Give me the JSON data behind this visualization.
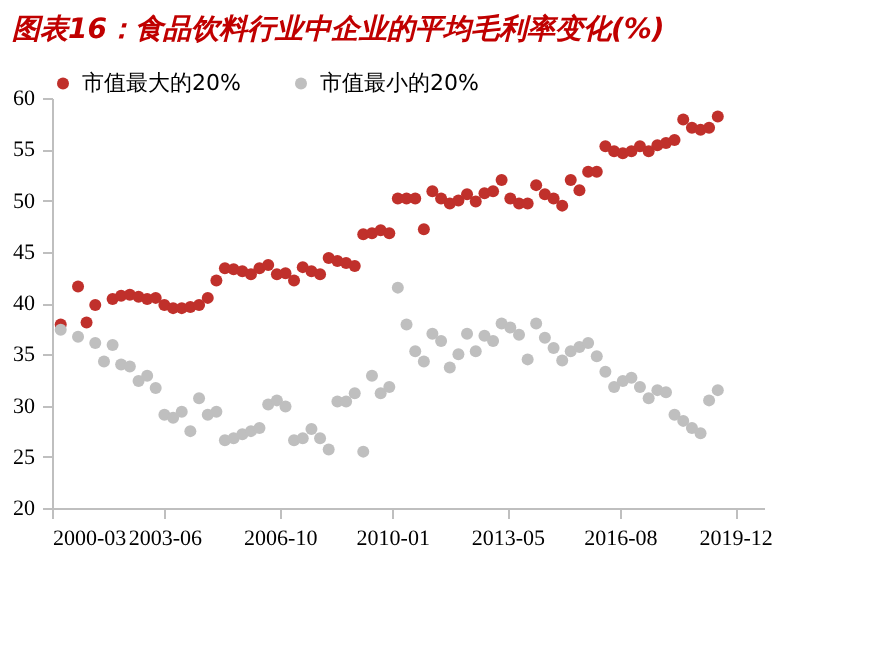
{
  "chart_data": {
    "type": "scatter",
    "title": "图表16：食品饮料行业中企业的平均毛利率变化(%)",
    "xlim": [
      "2000-03",
      "2020-10"
    ],
    "xticks": [
      "2000-03",
      "2003-06",
      "2006-10",
      "2010-01",
      "2013-05",
      "2016-08",
      "2019-12"
    ],
    "ylim": [
      20,
      60
    ],
    "yticks": [
      20,
      25,
      30,
      35,
      40,
      45,
      50,
      55,
      60
    ],
    "grid": false,
    "legend": "top",
    "marker": "circle",
    "series": [
      {
        "name": "市值最大的20%",
        "color": "#c0302b",
        "x": [
          "2000-06",
          "2000-12",
          "2001-03",
          "2001-06",
          "2001-12",
          "2002-03",
          "2002-06",
          "2002-09",
          "2002-12",
          "2003-03",
          "2003-06",
          "2003-09",
          "2003-12",
          "2004-03",
          "2004-06",
          "2004-09",
          "2004-12",
          "2005-03",
          "2005-06",
          "2005-09",
          "2005-12",
          "2006-03",
          "2006-06",
          "2006-09",
          "2006-12",
          "2007-03",
          "2007-06",
          "2007-09",
          "2007-12",
          "2008-03",
          "2008-06",
          "2008-09",
          "2008-12",
          "2009-03",
          "2009-06",
          "2009-09",
          "2009-12",
          "2010-03",
          "2010-06",
          "2010-09",
          "2010-12",
          "2011-03",
          "2011-06",
          "2011-09",
          "2011-12",
          "2012-03",
          "2012-06",
          "2012-09",
          "2012-12",
          "2013-03",
          "2013-06",
          "2013-09",
          "2013-12",
          "2014-03",
          "2014-06",
          "2014-09",
          "2014-12",
          "2015-03",
          "2015-06",
          "2015-09",
          "2015-12",
          "2016-03",
          "2016-06",
          "2016-09",
          "2016-12",
          "2017-03",
          "2017-06",
          "2017-09",
          "2017-12",
          "2018-03",
          "2018-06",
          "2018-09",
          "2018-12",
          "2019-03",
          "2019-06"
        ],
        "values": [
          37.9,
          41.6,
          38.1,
          39.8,
          40.4,
          40.7,
          40.8,
          40.6,
          40.4,
          40.5,
          39.8,
          39.5,
          39.5,
          39.6,
          39.8,
          40.5,
          42.2,
          43.4,
          43.3,
          43.1,
          42.8,
          43.4,
          43.7,
          42.8,
          42.9,
          42.2,
          43.5,
          43.1,
          42.8,
          44.4,
          44.1,
          43.9,
          43.6,
          46.7,
          46.8,
          47.1,
          46.8,
          50.2,
          50.2,
          50.2,
          47.2,
          50.9,
          50.2,
          49.7,
          50.0,
          50.6,
          49.9,
          50.7,
          50.9,
          52.0,
          50.2,
          49.7,
          49.7,
          51.5,
          50.6,
          50.2,
          49.5,
          52.0,
          51.0,
          52.8,
          52.8,
          55.3,
          54.8,
          54.6,
          54.8,
          55.3,
          54.8,
          55.4,
          55.6,
          55.9,
          57.9,
          57.1,
          56.9,
          57.1,
          58.2
        ]
      },
      {
        "name": "市值最小的20%",
        "color": "#bfbfbf",
        "x": [
          "2000-06",
          "2000-12",
          "2001-06",
          "2001-09",
          "2001-12",
          "2002-03",
          "2002-06",
          "2002-09",
          "2002-12",
          "2003-03",
          "2003-06",
          "2003-09",
          "2003-12",
          "2004-03",
          "2004-06",
          "2004-09",
          "2004-12",
          "2005-03",
          "2005-06",
          "2005-09",
          "2005-12",
          "2006-03",
          "2006-06",
          "2006-09",
          "2006-12",
          "2007-03",
          "2007-06",
          "2007-09",
          "2007-12",
          "2008-03",
          "2008-06",
          "2008-09",
          "2008-12",
          "2009-03",
          "2009-06",
          "2009-09",
          "2009-12",
          "2010-03",
          "2010-06",
          "2010-09",
          "2010-12",
          "2011-03",
          "2011-06",
          "2011-09",
          "2011-12",
          "2012-03",
          "2012-06",
          "2012-09",
          "2012-12",
          "2013-03",
          "2013-06",
          "2013-09",
          "2013-12",
          "2014-03",
          "2014-06",
          "2014-09",
          "2014-12",
          "2015-03",
          "2015-06",
          "2015-09",
          "2015-12",
          "2016-03",
          "2016-06",
          "2016-09",
          "2016-12",
          "2017-03",
          "2017-06",
          "2017-09",
          "2017-12",
          "2018-03",
          "2018-06",
          "2018-09",
          "2018-12",
          "2019-03",
          "2019-06"
        ],
        "values": [
          37.4,
          36.7,
          36.1,
          34.3,
          35.9,
          34.0,
          33.8,
          32.4,
          32.9,
          31.7,
          29.1,
          28.8,
          29.4,
          27.5,
          30.7,
          29.1,
          29.4,
          26.6,
          26.8,
          27.2,
          27.5,
          27.8,
          30.1,
          30.5,
          29.9,
          26.6,
          26.8,
          27.7,
          26.8,
          25.7,
          30.4,
          30.4,
          31.2,
          25.5,
          32.9,
          31.2,
          31.8,
          41.5,
          37.9,
          35.3,
          34.3,
          37.0,
          36.3,
          33.7,
          35.0,
          37.0,
          35.3,
          36.8,
          36.3,
          38.0,
          37.6,
          36.9,
          34.5,
          38.0,
          36.6,
          35.6,
          34.4,
          35.3,
          35.7,
          36.1,
          34.8,
          33.3,
          31.8,
          32.4,
          32.7,
          31.8,
          30.7,
          31.5,
          31.3,
          29.1,
          28.5,
          27.8,
          27.3,
          30.5,
          31.5
        ]
      }
    ]
  }
}
